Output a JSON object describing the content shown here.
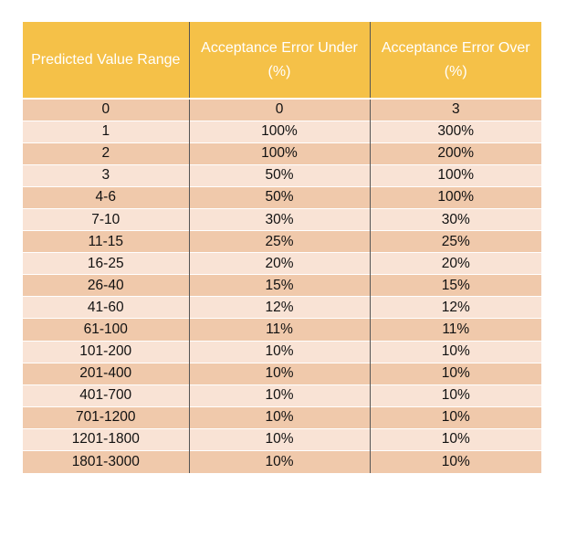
{
  "table": {
    "headers": [
      "Predicted Value Range",
      "Acceptance Error Under (%)",
      "Acceptance Error Over (%)"
    ],
    "rows": [
      [
        "0",
        "0",
        "3"
      ],
      [
        "1",
        "100%",
        "300%"
      ],
      [
        "2",
        "100%",
        "200%"
      ],
      [
        "3",
        "50%",
        "100%"
      ],
      [
        "4-6",
        "50%",
        "100%"
      ],
      [
        "7-10",
        "30%",
        "30%"
      ],
      [
        "11-15",
        "25%",
        "25%"
      ],
      [
        "16-25",
        "20%",
        "20%"
      ],
      [
        "26-40",
        "15%",
        "15%"
      ],
      [
        "41-60",
        "12%",
        "12%"
      ],
      [
        "61-100",
        "11%",
        "11%"
      ],
      [
        "101-200",
        "10%",
        "10%"
      ],
      [
        "201-400",
        "10%",
        "10%"
      ],
      [
        "401-700",
        "10%",
        "10%"
      ],
      [
        "701-1200",
        "10%",
        "10%"
      ],
      [
        "1201-1800",
        "10%",
        "10%"
      ],
      [
        "1801-3000",
        "10%",
        "10%"
      ]
    ]
  },
  "colors": {
    "header_bg": "#f5c148",
    "row_dark": "#f0c9ab",
    "row_light": "#f9e3d5"
  }
}
